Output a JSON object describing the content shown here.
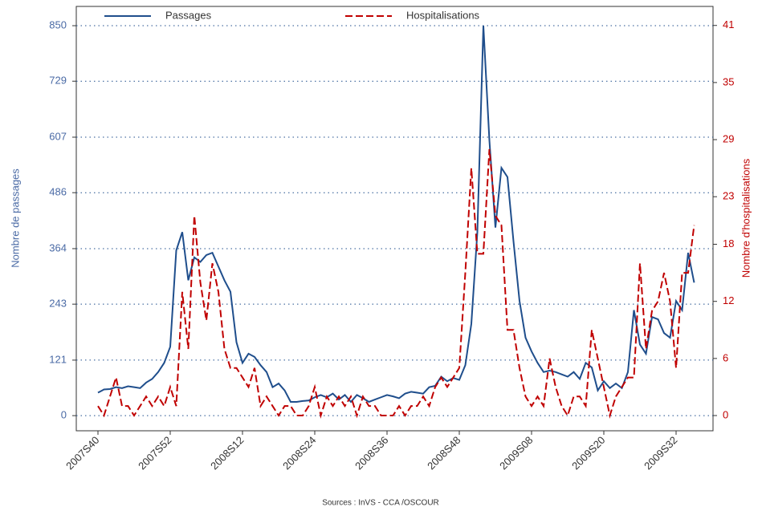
{
  "chart_data": {
    "type": "line",
    "categories": [
      "2007S40",
      null,
      null,
      null,
      null,
      null,
      null,
      null,
      null,
      null,
      null,
      null,
      "2007S52",
      null,
      null,
      null,
      null,
      null,
      null,
      null,
      null,
      null,
      null,
      null,
      "2008S12",
      null,
      null,
      null,
      null,
      null,
      null,
      null,
      null,
      null,
      null,
      null,
      "2008S24",
      null,
      null,
      null,
      null,
      null,
      null,
      null,
      null,
      null,
      null,
      null,
      "2008S36",
      null,
      null,
      null,
      null,
      null,
      null,
      null,
      null,
      null,
      null,
      null,
      "2008S48",
      null,
      null,
      null,
      null,
      null,
      null,
      null,
      null,
      null,
      null,
      null,
      "2009S08",
      null,
      null,
      null,
      null,
      null,
      null,
      null,
      null,
      null,
      null,
      null,
      "2009S20",
      null,
      null,
      null,
      null,
      null,
      null,
      null,
      null,
      null,
      null,
      null,
      "2009S32",
      null,
      null,
      null
    ],
    "series": [
      {
        "name": "Passages",
        "color": "#1f4e8c",
        "values": [
          50,
          57,
          58,
          62,
          60,
          64,
          62,
          60,
          72,
          80,
          95,
          115,
          150,
          360,
          400,
          295,
          345,
          335,
          350,
          355,
          325,
          295,
          270,
          160,
          115,
          135,
          128,
          110,
          95,
          62,
          70,
          55,
          30,
          30,
          32,
          33,
          40,
          45,
          40,
          48,
          35,
          45,
          30,
          45,
          38,
          30,
          35,
          40,
          45,
          42,
          38,
          48,
          52,
          50,
          48,
          62,
          65,
          85,
          75,
          82,
          78,
          110,
          200,
          400,
          850,
          600,
          410,
          540,
          520,
          380,
          250,
          170,
          140,
          115,
          95,
          98,
          95,
          90,
          85,
          95,
          80,
          115,
          105,
          55,
          75,
          60,
          70,
          60,
          95,
          230,
          155,
          135,
          215,
          210,
          180,
          170,
          250,
          230,
          355,
          290
        ]
      },
      {
        "name": "Hospitalisations",
        "color": "#c00000",
        "axis": "y2",
        "values": [
          1,
          0,
          2,
          4,
          1,
          1,
          0,
          1,
          2,
          1,
          2,
          1,
          3,
          1,
          13,
          7,
          21,
          14,
          10,
          16,
          13,
          7,
          5,
          5,
          4,
          3,
          5,
          1,
          2,
          1,
          0,
          1,
          1,
          0,
          0,
          1,
          3,
          0,
          2,
          1,
          2,
          1,
          2,
          0,
          2,
          1,
          1,
          0,
          0,
          0,
          1,
          0,
          1,
          1,
          2,
          1,
          3,
          4,
          3,
          4,
          5,
          15,
          26,
          17,
          17,
          28,
          21,
          20,
          9,
          9,
          5,
          2,
          1,
          2,
          1,
          6,
          3,
          1,
          0,
          2,
          2,
          1,
          9,
          6,
          3,
          0,
          2,
          3,
          4,
          4,
          16,
          7,
          11,
          12,
          15,
          12,
          5,
          15,
          15,
          20
        ]
      }
    ],
    "ylabel": "Nombre de passages",
    "y2label": "Nombre d'hospitalisations",
    "ylim": [
      -33,
      892
    ],
    "yticks": [
      0,
      121,
      243,
      364,
      486,
      607,
      729,
      850
    ],
    "y2lim": [
      -1.6,
      43
    ],
    "y2ticks": [
      0,
      6,
      12,
      18,
      23,
      29,
      35,
      41
    ],
    "grid": true,
    "source": "Sources : InVS - CCA /OSCOUR"
  }
}
